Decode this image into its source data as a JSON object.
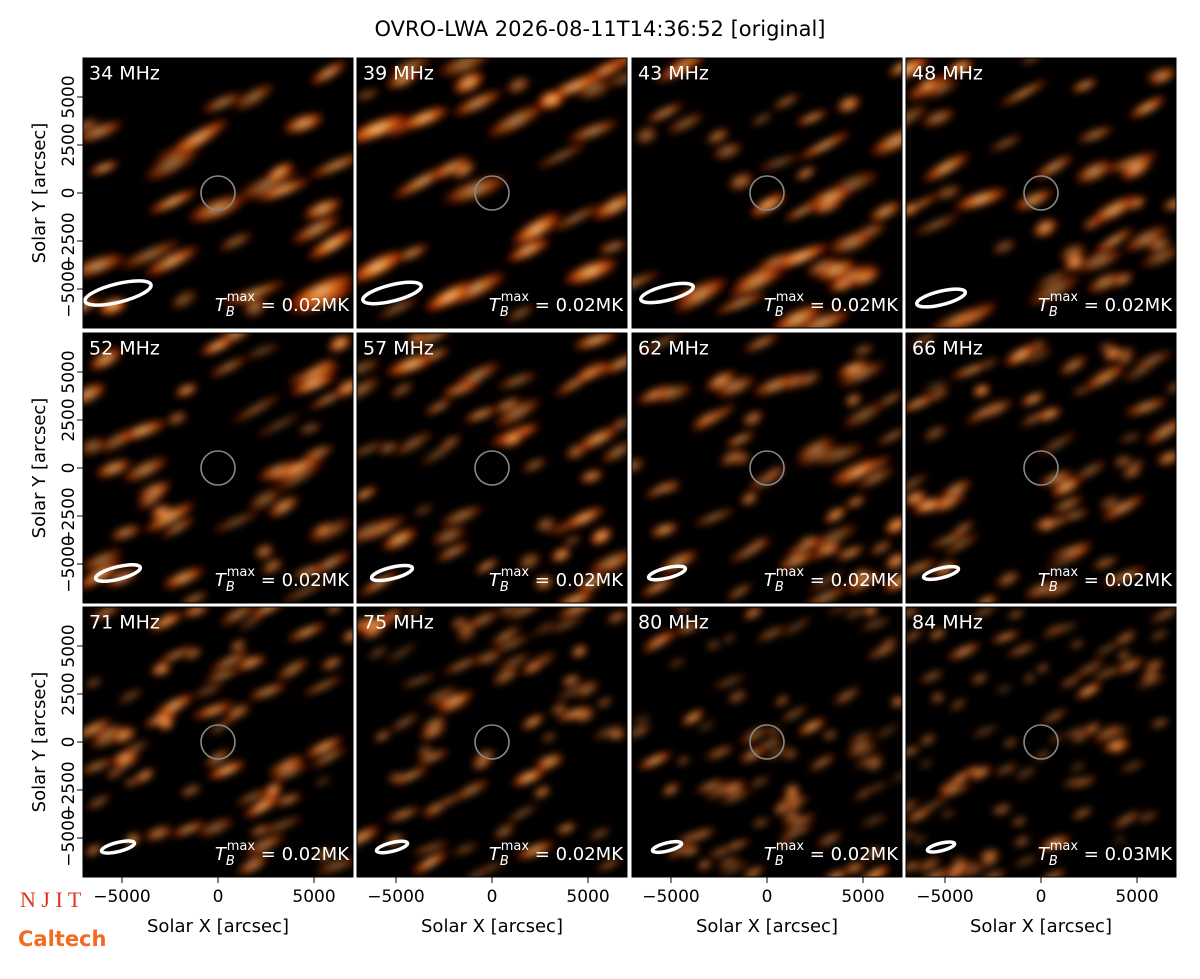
{
  "chart_data": {
    "type": "image",
    "title": "OVRO-LWA 2026-08-11T14:36:52 [original]",
    "xlabel": "Solar X [arcsec]",
    "ylabel": "Solar Y [arcsec]",
    "xlim": [
      -7030,
      7030
    ],
    "ylim": [
      -7030,
      7030
    ],
    "xticks": [
      {
        "value": -5000,
        "label": "−5000"
      },
      0,
      5000
    ],
    "yticks": [
      {
        "value": -5000,
        "label": "−5000"
      },
      {
        "value": -2500,
        "label": "−2500"
      },
      0,
      2500,
      5000
    ],
    "tb_symbol": "T",
    "tb_sub": "B",
    "tb_sup": "max",
    "panels": [
      {
        "label": "34 MHz",
        "tb_text": " = 0.02MK"
      },
      {
        "label": "39 MHz",
        "tb_text": " = 0.02MK"
      },
      {
        "label": "43 MHz",
        "tb_text": " = 0.02MK"
      },
      {
        "label": "48 MHz",
        "tb_text": " = 0.02MK"
      },
      {
        "label": "52 MHz",
        "tb_text": " = 0.02MK"
      },
      {
        "label": "57 MHz",
        "tb_text": " = 0.02MK"
      },
      {
        "label": "62 MHz",
        "tb_text": " = 0.02MK"
      },
      {
        "label": "66 MHz",
        "tb_text": " = 0.02MK"
      },
      {
        "label": "71 MHz",
        "tb_text": " = 0.02MK"
      },
      {
        "label": "75 MHz",
        "tb_text": " = 0.02MK"
      },
      {
        "label": "80 MHz",
        "tb_text": " = 0.02MK"
      },
      {
        "label": "84 MHz",
        "tb_text": " = 0.03MK"
      }
    ]
  },
  "logos": {
    "njit": "N J I T",
    "caltech": "Caltech"
  }
}
